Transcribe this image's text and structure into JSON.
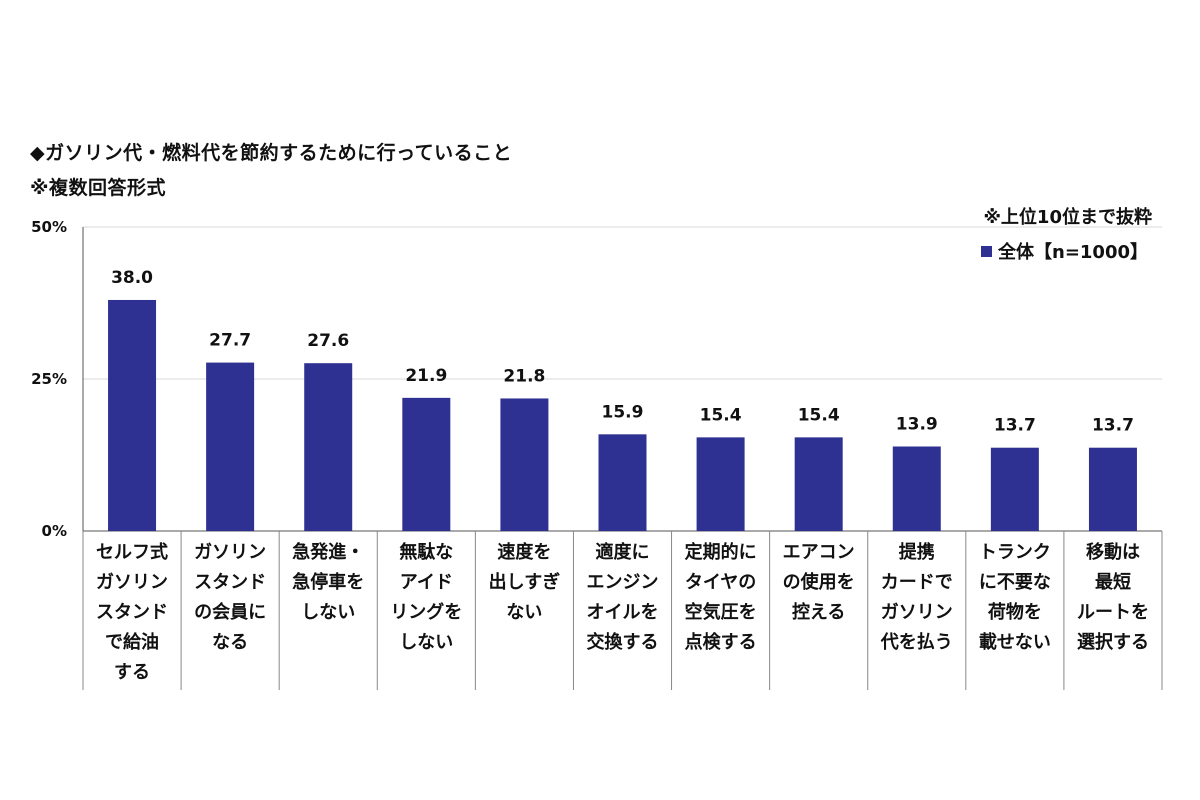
{
  "chart_data": {
    "type": "bar",
    "title": "◆ガソリン代・燃料代を節約するために行っていること",
    "subtitle": "※複数回答形式",
    "note": "※上位10位まで抜粋",
    "ylim": [
      0,
      50
    ],
    "yticks": [
      "0%",
      "25%",
      "50%"
    ],
    "ytick_values": [
      0,
      25,
      50
    ],
    "grid": true,
    "legend_position": "top-right",
    "series": [
      {
        "name": "全体【n=1000】",
        "color": "#2e3192",
        "values": [
          38.0,
          27.7,
          27.6,
          21.9,
          21.8,
          15.9,
          15.4,
          15.4,
          13.9,
          13.7,
          13.7
        ],
        "labels": [
          "38.0",
          "27.7",
          "27.6",
          "21.9",
          "21.8",
          "15.9",
          "15.4",
          "15.4",
          "13.9",
          "13.7",
          "13.7"
        ]
      }
    ],
    "categories": [
      [
        "セルフ式",
        "ガソリン",
        "スタンド",
        "で給油",
        "する"
      ],
      [
        "ガソリン",
        "スタンド",
        "の会員に",
        "なる"
      ],
      [
        "急発進・",
        "急停車を",
        "しない"
      ],
      [
        "無駄な",
        "アイド",
        "リングを",
        "しない"
      ],
      [
        "速度を",
        "出しすぎ",
        "ない"
      ],
      [
        "適度に",
        "エンジン",
        "オイルを",
        "交換する"
      ],
      [
        "定期的に",
        "タイヤの",
        "空気圧を",
        "点検する"
      ],
      [
        "エアコン",
        "の使用を",
        "控える"
      ],
      [
        "提携",
        "カードで",
        "ガソリン",
        "代を払う"
      ],
      [
        "トランク",
        "に不要な",
        "荷物を",
        "載せない"
      ],
      [
        "移動は",
        "最短",
        "ルートを",
        "選択する"
      ]
    ]
  }
}
